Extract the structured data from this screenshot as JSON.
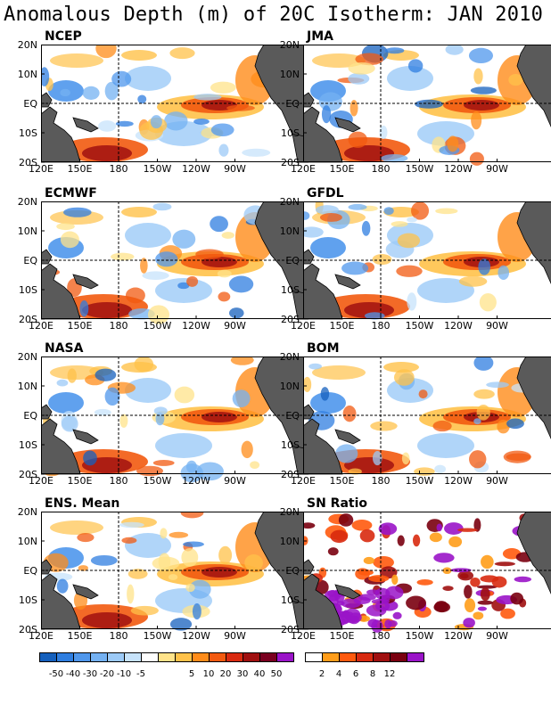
{
  "title": "Anomalous Depth (m) of 20C Isotherm: JAN 2010",
  "lat_labels": [
    "20N",
    "10N",
    "EQ",
    "10S",
    "20S"
  ],
  "lon_labels": [
    "120E",
    "150E",
    "180",
    "150W",
    "120W",
    "90W"
  ],
  "panels": [
    {
      "id": "ncep",
      "label": "NCEP"
    },
    {
      "id": "jma",
      "label": "JMA"
    },
    {
      "id": "ecmwf",
      "label": "ECMWF"
    },
    {
      "id": "gfdl",
      "label": "GFDL"
    },
    {
      "id": "nasa",
      "label": "NASA"
    },
    {
      "id": "bom",
      "label": "BOM"
    },
    {
      "id": "ens",
      "label": "ENS. Mean"
    },
    {
      "id": "sn",
      "label": "SN Ratio"
    }
  ],
  "legend_anomaly": {
    "labels": [
      "-50",
      "-40",
      "-30",
      "-20",
      "-10",
      "-5",
      "5",
      "10",
      "20",
      "30",
      "40",
      "50"
    ],
    "colors": [
      "#1560bd",
      "#2f7ee0",
      "#4f97ec",
      "#74b1f2",
      "#9ccaf7",
      "#c7e3fb",
      "#ffffff",
      "#ffe38a",
      "#ffc24a",
      "#ff8c1a",
      "#f25a10",
      "#d92a10",
      "#a01010",
      "#7a0020",
      "#9a14c8"
    ]
  },
  "legend_sn": {
    "labels": [
      "2",
      "4",
      "6",
      "8",
      "12"
    ],
    "colors": [
      "#ffffff",
      "#ff9d1a",
      "#ff5a0e",
      "#d82a10",
      "#a01010",
      "#7a0010",
      "#9a14c8"
    ]
  }
}
